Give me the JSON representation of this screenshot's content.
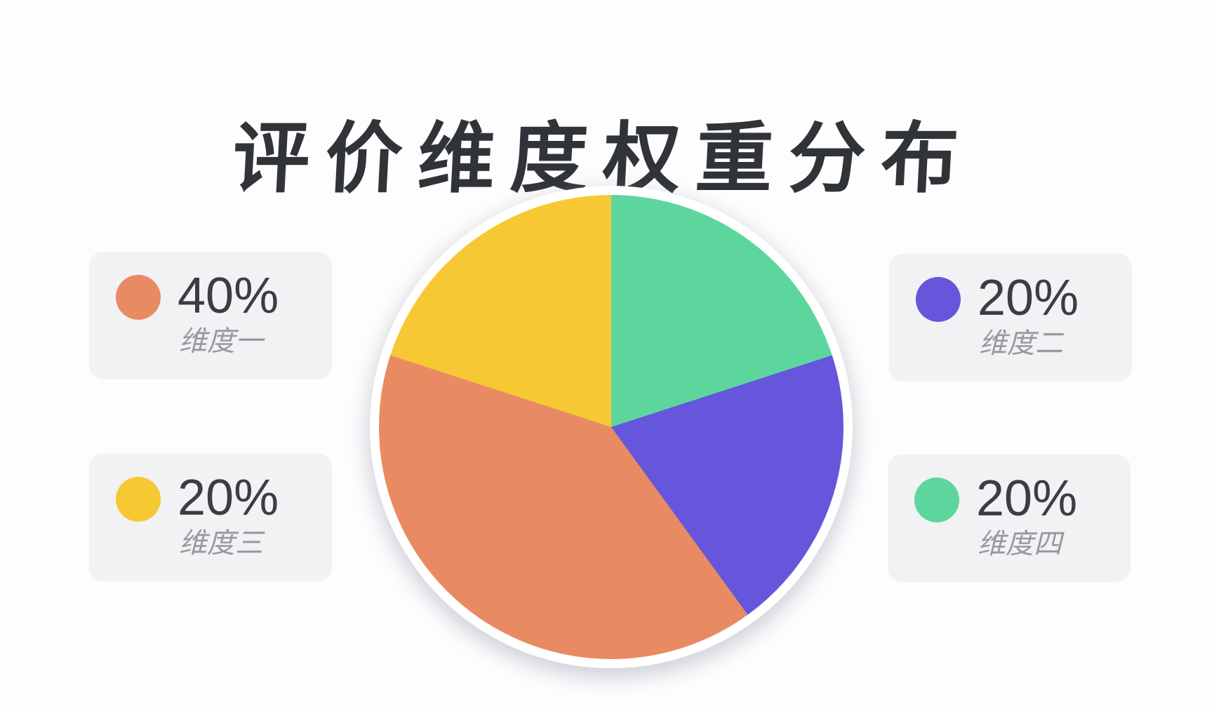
{
  "title": "评价维度权重分布",
  "colors": {
    "dimension_1": "#E98B62",
    "dimension_2": "#6556DC",
    "dimension_3": "#F6C833",
    "dimension_4": "#5DD69E",
    "title_text": "#303338",
    "percent_text": "#3A3D42",
    "label_text": "#98999E",
    "card_background": "#F2F2F4"
  },
  "chart_data": {
    "type": "pie",
    "title": "评价维度权重分布",
    "unit": "percent",
    "slices": [
      {
        "label": "维度一",
        "value": 40,
        "color": "#E98B62"
      },
      {
        "label": "维度二",
        "value": 20,
        "color": "#6556DC"
      },
      {
        "label": "维度三",
        "value": 20,
        "color": "#F6C833"
      },
      {
        "label": "维度四",
        "value": 20,
        "color": "#5DD69E"
      }
    ],
    "start_angle_deg": 0,
    "direction": "clockwise",
    "clockwise_from_top": [
      3,
      1,
      0,
      2
    ],
    "legend_position": "cards-left-and-right-of-pie",
    "data_labels_on_slices": false
  },
  "legend": {
    "items": [
      {
        "percent": "40%",
        "label": "维度一",
        "color": "#E98B62"
      },
      {
        "percent": "20%",
        "label": "维度二",
        "color": "#6556DC"
      },
      {
        "percent": "20%",
        "label": "维度三",
        "color": "#F6C833"
      },
      {
        "percent": "20%",
        "label": "维度四",
        "color": "#5DD69E"
      }
    ]
  }
}
